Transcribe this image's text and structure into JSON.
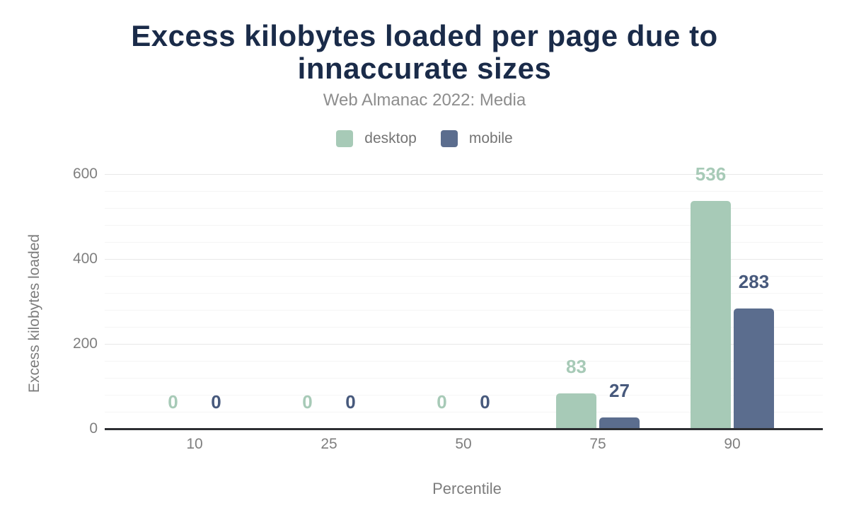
{
  "header": {
    "title_line1": "Excess kilobytes loaded per page due to",
    "title_line2": "innaccurate sizes",
    "subtitle": "Web Almanac 2022: Media"
  },
  "chart_data": {
    "type": "bar",
    "title": "Excess kilobytes loaded per page due to innaccurate sizes",
    "subtitle": "Web Almanac 2022: Media",
    "categories": [
      "10",
      "25",
      "50",
      "75",
      "90"
    ],
    "series": [
      {
        "name": "desktop",
        "color": "#a7cab7",
        "label_color": "#a7cab7",
        "values": [
          0,
          0,
          0,
          83,
          536
        ]
      },
      {
        "name": "mobile",
        "color": "#5b6d8e",
        "label_color": "#47597c",
        "values": [
          0,
          0,
          0,
          27,
          283
        ]
      }
    ],
    "xlabel": "Percentile",
    "ylabel": "Excess kilobytes loaded",
    "ylim": [
      0,
      600
    ],
    "yticks": [
      0,
      200,
      400,
      600
    ],
    "minor_grid_step": 40,
    "grid": true,
    "legend_position": "top"
  },
  "colors": {
    "title": "#1a2b49",
    "subtitle": "#8d8d8d",
    "tick_label": "#7f7f7f",
    "axis_line": "#2d2f33",
    "gridline_major": "#e8e8e8",
    "gridline_minor": "#f5f5f5",
    "background": "#ffffff"
  }
}
